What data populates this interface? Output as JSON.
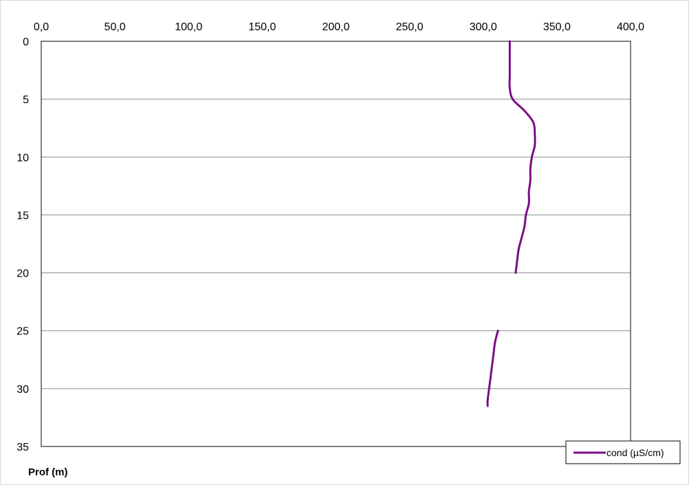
{
  "chart_data": {
    "type": "line",
    "title": "",
    "xlabel": "",
    "ylabel": "Prof (m)",
    "xlim": [
      0,
      400
    ],
    "ylim": [
      0,
      35
    ],
    "y_inverted": true,
    "x_axis_position": "top",
    "x_ticks": [
      0,
      50,
      100,
      150,
      200,
      250,
      300,
      350,
      400
    ],
    "x_tick_labels": [
      "0,0",
      "50,0",
      "100,0",
      "150,0",
      "200,0",
      "250,0",
      "300,0",
      "350,0",
      "400,0"
    ],
    "y_ticks": [
      0,
      5,
      10,
      15,
      20,
      25,
      30,
      35
    ],
    "y_tick_labels": [
      "0",
      "5",
      "10",
      "15",
      "20",
      "25",
      "30",
      "35"
    ],
    "grid": "horizontal",
    "legend_position": "bottom-right",
    "series": [
      {
        "name": "cond (µS/cm)",
        "color": "#7B0A86",
        "segments": [
          [
            {
              "x": 318,
              "y": 0
            },
            {
              "x": 318,
              "y": 1
            },
            {
              "x": 318,
              "y": 2
            },
            {
              "x": 318,
              "y": 3
            },
            {
              "x": 318,
              "y": 4
            },
            {
              "x": 320,
              "y": 5
            },
            {
              "x": 328,
              "y": 6
            },
            {
              "x": 334,
              "y": 7
            },
            {
              "x": 335,
              "y": 8
            },
            {
              "x": 335,
              "y": 9
            },
            {
              "x": 333,
              "y": 10
            },
            {
              "x": 332,
              "y": 11
            },
            {
              "x": 332,
              "y": 12
            },
            {
              "x": 331,
              "y": 13
            },
            {
              "x": 331,
              "y": 14
            },
            {
              "x": 329,
              "y": 15
            },
            {
              "x": 328,
              "y": 16
            },
            {
              "x": 326,
              "y": 17
            },
            {
              "x": 324,
              "y": 18
            },
            {
              "x": 323,
              "y": 19
            },
            {
              "x": 322,
              "y": 20
            }
          ],
          [
            {
              "x": 310,
              "y": 25
            },
            {
              "x": 308,
              "y": 26
            },
            {
              "x": 307,
              "y": 27
            },
            {
              "x": 306,
              "y": 28
            },
            {
              "x": 305,
              "y": 29
            },
            {
              "x": 304,
              "y": 30
            },
            {
              "x": 303,
              "y": 31
            },
            {
              "x": 303,
              "y": 31.5
            }
          ]
        ]
      }
    ]
  }
}
